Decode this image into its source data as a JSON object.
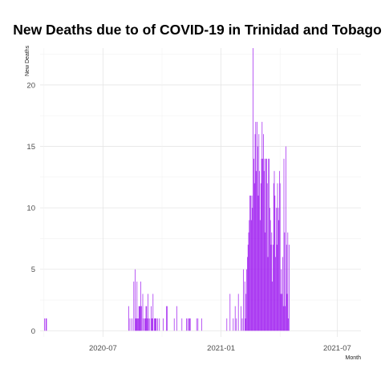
{
  "chart_data": {
    "type": "bar",
    "title": "New Deaths due to of COVID-19 in Trinidad and Tobago",
    "xlabel": "Month",
    "ylabel": "New Deaths",
    "grid": true,
    "legend": "none",
    "bar_color": "#a020f0",
    "x_ticks": [
      "2020-07-01",
      "2021-01-01",
      "2021-07-01"
    ],
    "x_tick_labels": [
      "2020-07",
      "2021-01",
      "2021-07"
    ],
    "y_ticks": [
      0,
      5,
      10,
      15,
      20
    ],
    "xlim": [
      "2020-03-25",
      "2021-08-07"
    ],
    "ylim": [
      -0.5,
      23
    ],
    "series": [
      {
        "values": [
          [
            "2020-04-01",
            1
          ],
          [
            "2020-04-03",
            1
          ],
          [
            "2020-04-04",
            1
          ],
          [
            "2020-08-10",
            2
          ],
          [
            "2020-08-12",
            1
          ],
          [
            "2020-08-15",
            1
          ],
          [
            "2020-08-18",
            4
          ],
          [
            "2020-08-20",
            5
          ],
          [
            "2020-08-21",
            1
          ],
          [
            "2020-08-22",
            1
          ],
          [
            "2020-08-23",
            4
          ],
          [
            "2020-08-24",
            1
          ],
          [
            "2020-08-25",
            1
          ],
          [
            "2020-08-26",
            2
          ],
          [
            "2020-08-27",
            2
          ],
          [
            "2020-08-28",
            2
          ],
          [
            "2020-08-29",
            4
          ],
          [
            "2020-08-30",
            2
          ],
          [
            "2020-09-01",
            3
          ],
          [
            "2020-09-02",
            1
          ],
          [
            "2020-09-04",
            1
          ],
          [
            "2020-09-05",
            1
          ],
          [
            "2020-09-06",
            2
          ],
          [
            "2020-09-07",
            2
          ],
          [
            "2020-09-08",
            1
          ],
          [
            "2020-09-09",
            3
          ],
          [
            "2020-09-10",
            1
          ],
          [
            "2020-09-12",
            1
          ],
          [
            "2020-09-14",
            2
          ],
          [
            "2020-09-15",
            1
          ],
          [
            "2020-09-16",
            1
          ],
          [
            "2020-09-17",
            3
          ],
          [
            "2020-09-19",
            1
          ],
          [
            "2020-09-20",
            1
          ],
          [
            "2020-09-21",
            1
          ],
          [
            "2020-09-22",
            1
          ],
          [
            "2020-09-24",
            1
          ],
          [
            "2020-09-27",
            1
          ],
          [
            "2020-10-03",
            1
          ],
          [
            "2020-10-08",
            2
          ],
          [
            "2020-10-09",
            2
          ],
          [
            "2020-10-20",
            1
          ],
          [
            "2020-10-24",
            2
          ],
          [
            "2020-11-01",
            1
          ],
          [
            "2020-11-08",
            1
          ],
          [
            "2020-11-10",
            1
          ],
          [
            "2020-11-12",
            1
          ],
          [
            "2020-11-13",
            1
          ],
          [
            "2020-11-14",
            1
          ],
          [
            "2020-11-24",
            1
          ],
          [
            "2020-11-26",
            1
          ],
          [
            "2020-12-02",
            1
          ],
          [
            "2021-01-10",
            1
          ],
          [
            "2021-01-15",
            3
          ],
          [
            "2021-01-20",
            1
          ],
          [
            "2021-01-23",
            2
          ],
          [
            "2021-01-25",
            1
          ],
          [
            "2021-01-28",
            3
          ],
          [
            "2021-02-01",
            2
          ],
          [
            "2021-02-03",
            1
          ],
          [
            "2021-02-05",
            5
          ],
          [
            "2021-02-07",
            4
          ],
          [
            "2021-02-08",
            1
          ],
          [
            "2021-02-09",
            3
          ],
          [
            "2021-02-10",
            5
          ],
          [
            "2021-02-11",
            6
          ],
          [
            "2021-02-12",
            7
          ],
          [
            "2021-02-13",
            8
          ],
          [
            "2021-02-14",
            9
          ],
          [
            "2021-02-15",
            11
          ],
          [
            "2021-02-16",
            11
          ],
          [
            "2021-02-17",
            9
          ],
          [
            "2021-02-18",
            11
          ],
          [
            "2021-02-19",
            10
          ],
          [
            "2021-02-20",
            23
          ],
          [
            "2021-02-21",
            14
          ],
          [
            "2021-02-22",
            12
          ],
          [
            "2021-02-23",
            16
          ],
          [
            "2021-02-24",
            17
          ],
          [
            "2021-02-25",
            13
          ],
          [
            "2021-02-26",
            17
          ],
          [
            "2021-02-27",
            15
          ],
          [
            "2021-02-28",
            11
          ],
          [
            "2021-03-01",
            16
          ],
          [
            "2021-03-02",
            13
          ],
          [
            "2021-03-03",
            9
          ],
          [
            "2021-03-04",
            12
          ],
          [
            "2021-03-05",
            14
          ],
          [
            "2021-03-06",
            17
          ],
          [
            "2021-03-07",
            14
          ],
          [
            "2021-03-08",
            16
          ],
          [
            "2021-03-09",
            13
          ],
          [
            "2021-03-10",
            14
          ],
          [
            "2021-03-11",
            8
          ],
          [
            "2021-03-12",
            14
          ],
          [
            "2021-03-13",
            14
          ],
          [
            "2021-03-14",
            12
          ],
          [
            "2021-03-15",
            6
          ],
          [
            "2021-03-16",
            14
          ],
          [
            "2021-03-17",
            14
          ],
          [
            "2021-03-18",
            10
          ],
          [
            "2021-03-19",
            9
          ],
          [
            "2021-03-20",
            7
          ],
          [
            "2021-03-21",
            8
          ],
          [
            "2021-03-22",
            4
          ],
          [
            "2021-03-23",
            7
          ],
          [
            "2021-03-24",
            12
          ],
          [
            "2021-03-25",
            13
          ],
          [
            "2021-03-26",
            11
          ],
          [
            "2021-03-27",
            6
          ],
          [
            "2021-03-28",
            10
          ],
          [
            "2021-03-29",
            7
          ],
          [
            "2021-03-30",
            12
          ],
          [
            "2021-03-31",
            10
          ],
          [
            "2021-04-01",
            9
          ],
          [
            "2021-04-02",
            13
          ],
          [
            "2021-04-03",
            12
          ],
          [
            "2021-04-04",
            3
          ],
          [
            "2021-04-05",
            5
          ],
          [
            "2021-04-06",
            3
          ],
          [
            "2021-04-07",
            6
          ],
          [
            "2021-04-08",
            2
          ],
          [
            "2021-04-09",
            14
          ],
          [
            "2021-04-10",
            8
          ],
          [
            "2021-04-11",
            2
          ],
          [
            "2021-04-12",
            15
          ],
          [
            "2021-04-13",
            7
          ],
          [
            "2021-04-14",
            3
          ],
          [
            "2021-04-15",
            8
          ],
          [
            "2021-04-16",
            1
          ],
          [
            "2021-04-17",
            7
          ]
        ]
      }
    ]
  }
}
